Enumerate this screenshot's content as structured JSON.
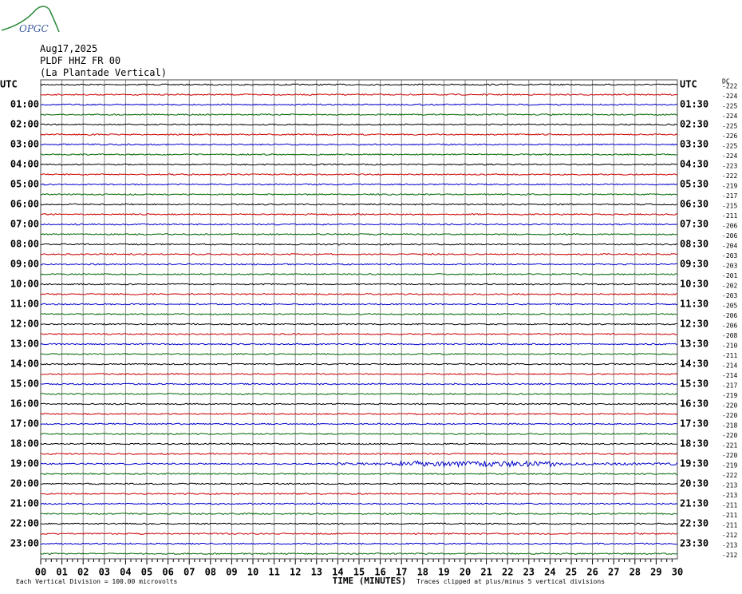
{
  "logo": "OPGC",
  "header": {
    "date": "Aug17,2025",
    "station": "PLDF HHZ FR 00",
    "site": "(La Plantade Vertical)"
  },
  "left_labels": [
    "UTC",
    "01:00",
    "02:00",
    "03:00",
    "04:00",
    "05:00",
    "06:00",
    "07:00",
    "08:00",
    "09:00",
    "10:00",
    "11:00",
    "12:00",
    "13:00",
    "14:00",
    "15:00",
    "16:00",
    "17:00",
    "18:00",
    "19:00",
    "20:00",
    "21:00",
    "22:00",
    "23:00"
  ],
  "right_labels": [
    "UTC",
    "01:30",
    "02:30",
    "03:30",
    "04:30",
    "05:30",
    "06:30",
    "07:30",
    "08:30",
    "09:30",
    "10:30",
    "11:30",
    "12:30",
    "13:30",
    "14:30",
    "15:30",
    "16:30",
    "17:30",
    "18:30",
    "19:30",
    "20:30",
    "21:30",
    "22:30",
    "23:30"
  ],
  "dc_label": "DC",
  "dc_values": [
    -222,
    -224,
    -225,
    -224,
    -225,
    -226,
    -225,
    -224,
    -223,
    -222,
    -219,
    -217,
    -215,
    -211,
    -206,
    -206,
    -204,
    -203,
    -203,
    -201,
    -202,
    -203,
    -205,
    -206,
    -206,
    -208,
    -210,
    -211,
    -214,
    -214,
    -217,
    -219,
    -220,
    -220,
    -218,
    -220,
    -221,
    -220,
    -219,
    -222,
    -213,
    -213,
    -211,
    -211,
    -211,
    -212,
    -213,
    -212
  ],
  "x_labels": [
    "00",
    "01",
    "02",
    "03",
    "04",
    "05",
    "06",
    "07",
    "08",
    "09",
    "10",
    "11",
    "12",
    "13",
    "14",
    "15",
    "16",
    "17",
    "18",
    "19",
    "20",
    "21",
    "22",
    "23",
    "24",
    "25",
    "26",
    "27",
    "28",
    "29",
    "30"
  ],
  "trace_colors": [
    "#000000",
    "#cc0000",
    "#0000cc",
    "#006600"
  ],
  "footer": {
    "scale": "Each Vertical Division =  100.00 microvolts",
    "axis": "TIME (MINUTES)",
    "clip": "Traces clipped at plus/minus 5 vertical divisions"
  }
}
